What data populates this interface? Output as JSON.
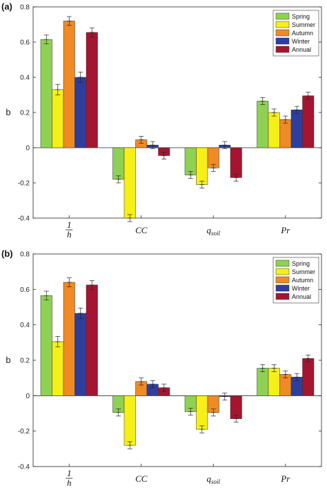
{
  "chart_data": [
    {
      "type": "bar",
      "panel_label": "(a)",
      "ylabel": "b",
      "ylim": [
        -0.4,
        0.8
      ],
      "yticks": [
        "0.8",
        "0.6",
        "0.4",
        "0.2",
        "0",
        "-0.2",
        "-0.4"
      ],
      "ytick_values": [
        0.8,
        0.6,
        0.4,
        0.2,
        0,
        -0.2,
        -0.4
      ],
      "categories": [
        "1/h",
        "CC",
        "q_soil",
        "Pr"
      ],
      "legend_position": "top-right",
      "series": [
        {
          "name": "Spring",
          "color": "#8ED155",
          "values": [
            0.615,
            -0.18,
            -0.155,
            0.265
          ],
          "errors": [
            0.025,
            0.02,
            0.02,
            0.02
          ]
        },
        {
          "name": "Summer",
          "color": "#F5F017",
          "values": [
            0.33,
            -0.4,
            -0.21,
            0.2
          ],
          "errors": [
            0.03,
            0.02,
            0.02,
            0.02
          ]
        },
        {
          "name": "Autumn",
          "color": "#F08A24",
          "values": [
            0.72,
            0.045,
            -0.115,
            0.16
          ],
          "errors": [
            0.025,
            0.02,
            0.02,
            0.02
          ]
        },
        {
          "name": "Winter",
          "color": "#2D3E9E",
          "values": [
            0.4,
            0.015,
            0.015,
            0.215
          ],
          "errors": [
            0.03,
            0.02,
            0.02,
            0.02
          ]
        },
        {
          "name": "Annual",
          "color": "#A51530",
          "values": [
            0.655,
            -0.045,
            -0.17,
            0.295
          ],
          "errors": [
            0.025,
            0.02,
            0.02,
            0.02
          ]
        }
      ]
    },
    {
      "type": "bar",
      "panel_label": "(b)",
      "ylabel": "b",
      "ylim": [
        -0.4,
        0.8
      ],
      "yticks": [
        "0.8",
        "0.6",
        "0.4",
        "0.2",
        "0",
        "-0.2",
        "-0.4"
      ],
      "ytick_values": [
        0.8,
        0.6,
        0.4,
        0.2,
        0,
        -0.2,
        -0.4
      ],
      "categories": [
        "1/h",
        "CC",
        "q_soil",
        "Pr"
      ],
      "legend_position": "top-right",
      "series": [
        {
          "name": "Spring",
          "color": "#8ED155",
          "values": [
            0.565,
            -0.095,
            -0.09,
            0.155
          ],
          "errors": [
            0.025,
            0.02,
            0.02,
            0.02
          ]
        },
        {
          "name": "Summer",
          "color": "#F5F017",
          "values": [
            0.305,
            -0.28,
            -0.19,
            0.155
          ],
          "errors": [
            0.03,
            0.02,
            0.02,
            0.02
          ]
        },
        {
          "name": "Autumn",
          "color": "#F08A24",
          "values": [
            0.64,
            0.08,
            -0.095,
            0.12
          ],
          "errors": [
            0.025,
            0.02,
            0.02,
            0.02
          ]
        },
        {
          "name": "Winter",
          "color": "#2D3E9E",
          "values": [
            0.465,
            0.065,
            -0.005,
            0.105
          ],
          "errors": [
            0.03,
            0.02,
            0.02,
            0.02
          ]
        },
        {
          "name": "Annual",
          "color": "#A51530",
          "values": [
            0.625,
            0.045,
            -0.13,
            0.21
          ],
          "errors": [
            0.025,
            0.02,
            0.02,
            0.02
          ]
        }
      ]
    }
  ]
}
